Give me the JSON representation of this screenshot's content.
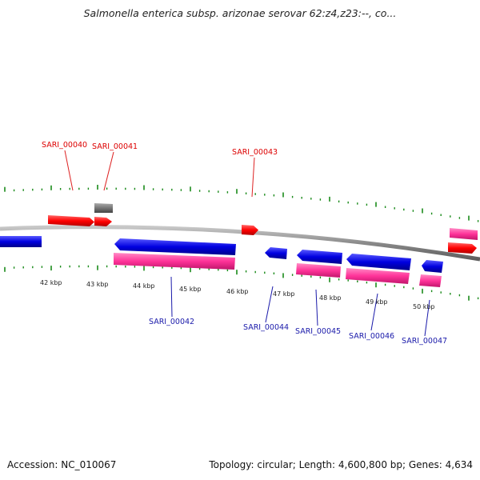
{
  "title": "Salmonella enterica subsp. arizonae serovar 62:z4,z23:--, co...",
  "footer": {
    "accession": "Accession: NC_010067",
    "summary": "Topology: circular; Length: 4,600,800 bp; Genes: 4,634"
  },
  "genome_map": {
    "scale_labels": [
      "42 kbp",
      "43 kbp",
      "44 kbp",
      "45 kbp",
      "46 kbp",
      "47 kbp",
      "48 kbp",
      "49 kbp",
      "50 kbp"
    ],
    "gene_labels": {
      "top": [
        "SARI_00040",
        "SARI_00041",
        "SARI_00043"
      ],
      "bottom": [
        "SARI_00042",
        "SARI_00044",
        "SARI_00045",
        "SARI_00046",
        "SARI_00047"
      ]
    },
    "colors": {
      "forward_cds": "#ff0000",
      "reverse_cds": "#0000dd",
      "rna_like": "#ff3399",
      "other": "#777777",
      "ticks": "#1a8a1a",
      "backbone": "#888888",
      "label_top": "#dd0000",
      "label_bottom": "#1a1aaa"
    }
  }
}
